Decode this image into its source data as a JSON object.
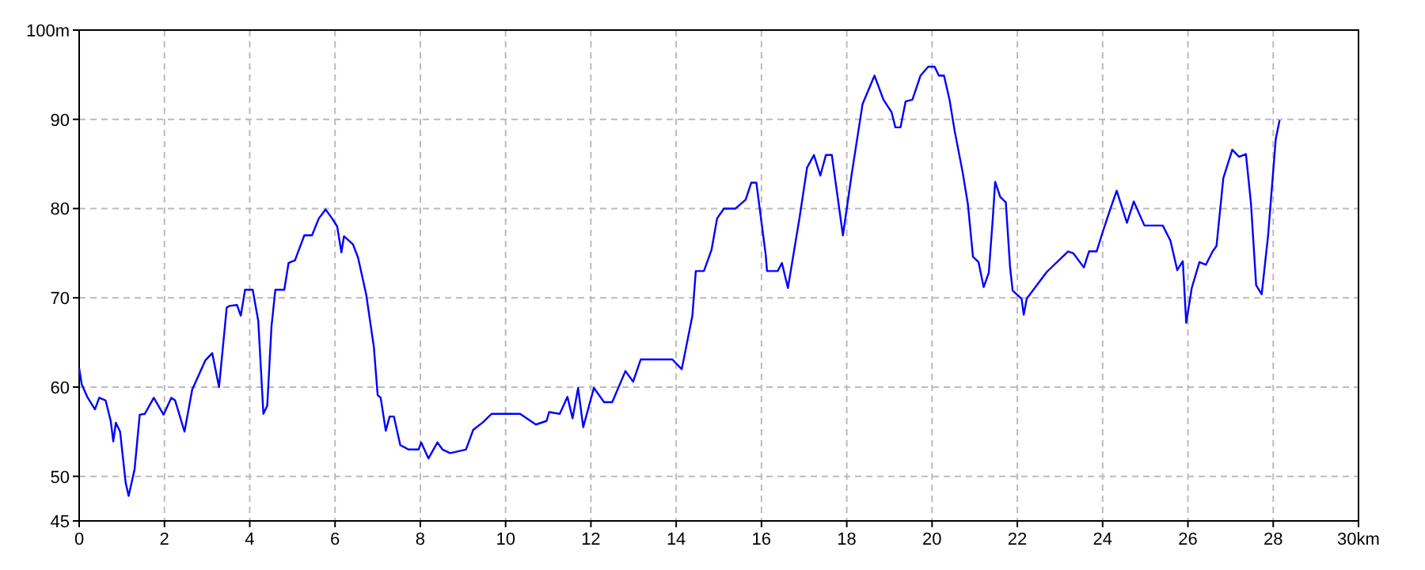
{
  "chart_data": {
    "type": "line",
    "xlim": [
      0,
      30
    ],
    "ylim": [
      45,
      100
    ],
    "xticks": [
      0,
      2,
      4,
      6,
      8,
      10,
      12,
      14,
      16,
      18,
      20,
      22,
      24,
      26,
      28,
      {
        "value": 30,
        "label": "30km"
      }
    ],
    "yticks": [
      45,
      50,
      60,
      70,
      80,
      90,
      {
        "value": 100,
        "label": "100m"
      }
    ],
    "grid": true,
    "line_style": "solid",
    "marker": "none",
    "series": [
      {
        "color": "#0000ff",
        "x": [
          0,
          0.06,
          0.19,
          0.37,
          0.47,
          0.62,
          0.74,
          0.8,
          0.86,
          0.96,
          1.09,
          1.16,
          1.3,
          1.42,
          1.54,
          1.75,
          1.98,
          2.16,
          2.25,
          2.47,
          2.65,
          2.96,
          3.12,
          3.28,
          3.46,
          3.53,
          3.7,
          3.79,
          3.89,
          4.07,
          4.2,
          4.32,
          4.41,
          4.51,
          4.6,
          4.81,
          4.91,
          5.06,
          5.28,
          5.46,
          5.62,
          5.78,
          5.93,
          6.05,
          6.15,
          6.21,
          6.42,
          6.54,
          6.73,
          6.91,
          7.0,
          7.07,
          7.19,
          7.28,
          7.38,
          7.53,
          7.72,
          7.96,
          8.02,
          8.19,
          8.4,
          8.52,
          8.7,
          9.07,
          9.24,
          9.48,
          9.67,
          10.34,
          10.71,
          10.96,
          11.02,
          11.27,
          11.45,
          11.57,
          11.7,
          11.82,
          12.07,
          12.31,
          12.5,
          12.81,
          12.99,
          13.17,
          13.91,
          14.13,
          14.38,
          14.46,
          14.65,
          14.83,
          14.96,
          15.12,
          15.39,
          15.63,
          15.76,
          15.88,
          16.1,
          16.13,
          16.38,
          16.48,
          16.62,
          16.89,
          17.07,
          17.23,
          17.38,
          17.51,
          17.65,
          17.91,
          18.12,
          18.37,
          18.65,
          18.86,
          19.05,
          19.14,
          19.26,
          19.38,
          19.54,
          19.73,
          19.91,
          20.06,
          20.16,
          20.28,
          20.41,
          20.53,
          20.72,
          20.84,
          20.96,
          21.09,
          21.21,
          21.33,
          21.42,
          21.48,
          21.6,
          21.73,
          21.83,
          21.89,
          22.1,
          22.15,
          22.22,
          22.69,
          23.19,
          23.31,
          23.56,
          23.68,
          23.86,
          23.99,
          24.17,
          24.33,
          24.57,
          24.73,
          24.98,
          25.41,
          25.59,
          25.75,
          25.88,
          25.96,
          26.09,
          26.27,
          26.42,
          26.58,
          26.67,
          26.83,
          27.04,
          27.2,
          27.36,
          27.48,
          27.6,
          27.73,
          27.88,
          28.06,
          28.15
        ],
        "values": [
          62.1,
          60.3,
          58.9,
          57.5,
          58.8,
          58.5,
          56.2,
          53.9,
          56,
          55,
          49.3,
          47.8,
          50.8,
          56.9,
          57,
          58.8,
          56.9,
          58.8,
          58.5,
          55,
          59.7,
          63,
          63.8,
          60,
          68.9,
          69.1,
          69.2,
          68,
          70.9,
          70.9,
          67.4,
          57,
          57.9,
          66.8,
          70.9,
          70.9,
          73.9,
          74.2,
          77,
          77,
          78.9,
          79.9,
          78.9,
          78,
          75.1,
          76.9,
          76,
          74.5,
          70.4,
          64.5,
          59.1,
          58.8,
          55.1,
          56.7,
          56.7,
          53.5,
          53,
          53,
          53.8,
          52,
          53.8,
          53,
          52.6,
          53,
          55.2,
          56.1,
          57,
          57,
          55.8,
          56.2,
          57.2,
          57,
          58.9,
          56.5,
          59.9,
          55.5,
          59.9,
          58.3,
          58.3,
          61.8,
          60.6,
          63.1,
          63.1,
          62,
          68,
          73,
          73,
          75.4,
          78.9,
          80,
          80,
          81,
          82.9,
          82.9,
          74.8,
          73,
          73,
          73.9,
          71.1,
          78.9,
          84.6,
          86,
          83.7,
          86,
          86,
          77,
          84,
          91.7,
          94.9,
          92.2,
          90.8,
          89.1,
          89.1,
          92,
          92.2,
          94.9,
          95.9,
          95.9,
          94.9,
          94.9,
          92.2,
          88.7,
          84,
          80.5,
          74.6,
          74,
          71.2,
          72.8,
          78.6,
          83,
          81.3,
          80.7,
          73.4,
          70.8,
          69.9,
          68.1,
          69.9,
          72.9,
          75.2,
          75,
          73.4,
          75.2,
          75.2,
          77.2,
          79.8,
          82,
          78.4,
          80.8,
          78.1,
          78.1,
          76.4,
          73.1,
          74.1,
          67.2,
          71.1,
          74,
          73.7,
          75.2,
          75.8,
          83.4,
          86.6,
          85.8,
          86.1,
          80.5,
          71.4,
          70.4,
          77,
          87.8,
          89.9
        ]
      }
    ]
  }
}
